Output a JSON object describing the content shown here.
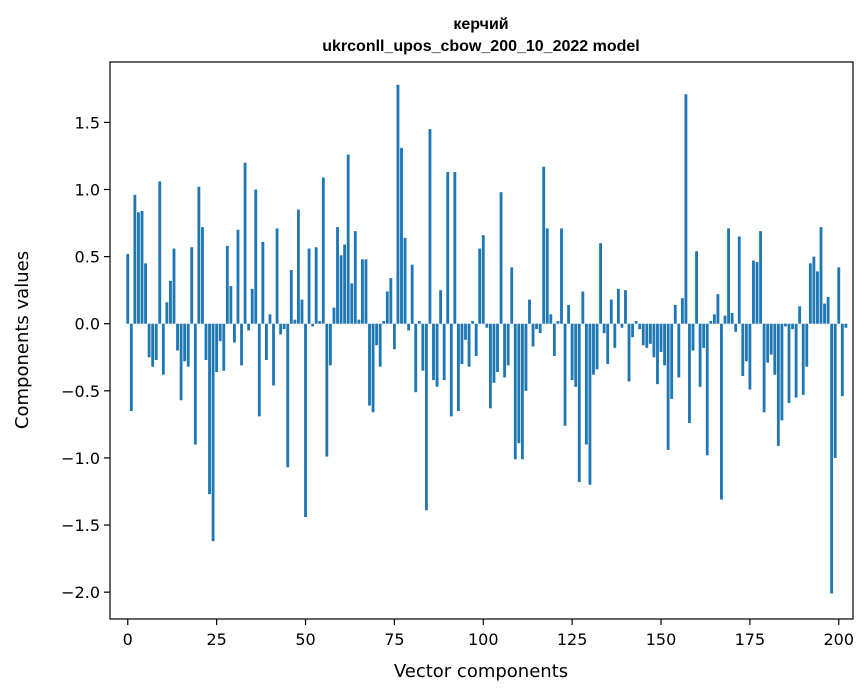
{
  "chart_data": {
    "type": "bar",
    "title": "керчий",
    "subtitle": "ukrconll_upos_cbow_200_10_2022 model",
    "xlabel": "Vector components",
    "ylabel": "Components values",
    "xlim": [
      -5,
      204
    ],
    "ylim": [
      -2.2,
      1.95
    ],
    "xticks": [
      0,
      25,
      50,
      75,
      100,
      125,
      150,
      175,
      200
    ],
    "yticks": [
      -2.0,
      -1.5,
      -1.0,
      -0.5,
      0.0,
      0.5,
      1.0,
      1.5
    ],
    "ytick_labels": [
      "−2.0",
      "−1.5",
      "−1.0",
      "−0.5",
      "0.0",
      "0.5",
      "1.0",
      "1.5"
    ],
    "grid": false,
    "bar_color": "#1f77b4",
    "values": [
      0.52,
      -0.65,
      0.96,
      0.83,
      0.84,
      0.45,
      -0.25,
      -0.32,
      -0.27,
      1.06,
      -0.38,
      0.16,
      0.32,
      0.56,
      -0.2,
      -0.57,
      -0.28,
      -0.32,
      0.57,
      -0.9,
      1.02,
      0.72,
      -0.27,
      -1.27,
      -1.62,
      -0.36,
      -0.13,
      -0.35,
      0.58,
      0.28,
      -0.14,
      0.7,
      -0.31,
      1.2,
      -0.05,
      0.26,
      1.0,
      -0.69,
      0.61,
      -0.27,
      0.07,
      -0.46,
      0.71,
      -0.08,
      -0.04,
      -1.07,
      0.4,
      0.03,
      0.85,
      0.18,
      -1.44,
      0.56,
      -0.02,
      0.57,
      0.02,
      1.09,
      -0.99,
      -0.31,
      0.12,
      0.72,
      0.51,
      0.59,
      1.26,
      0.3,
      0.69,
      0.03,
      0.48,
      0.48,
      -0.61,
      -0.66,
      -0.16,
      -0.32,
      0.02,
      0.24,
      0.34,
      -0.19,
      1.78,
      1.31,
      0.64,
      -0.05,
      0.44,
      -0.51,
      0.02,
      -0.35,
      -1.39,
      1.45,
      -0.42,
      -0.47,
      0.25,
      -0.42,
      1.13,
      -0.69,
      1.13,
      -0.65,
      -0.3,
      -0.12,
      -0.32,
      0.02,
      -0.24,
      0.56,
      0.66,
      -0.03,
      -0.63,
      -0.44,
      -0.36,
      0.98,
      -0.4,
      -0.31,
      0.42,
      -1.01,
      -0.89,
      -1.01,
      -0.5,
      0.18,
      -0.17,
      -0.04,
      -0.07,
      1.17,
      0.71,
      0.07,
      -0.24,
      0.02,
      0.71,
      -0.76,
      0.14,
      -0.42,
      -0.47,
      -1.18,
      0.24,
      -0.9,
      -1.2,
      -0.38,
      -0.34,
      0.6,
      -0.07,
      -0.3,
      0.18,
      -0.18,
      0.26,
      -0.03,
      0.25,
      -0.43,
      -0.1,
      0.02,
      -0.04,
      -0.16,
      -0.18,
      -0.15,
      -0.25,
      -0.45,
      -0.21,
      -0.31,
      -0.94,
      -0.56,
      0.14,
      -0.4,
      0.19,
      1.71,
      -0.74,
      -0.2,
      0.54,
      -0.47,
      -0.18,
      -0.98,
      0.02,
      0.07,
      0.22,
      -1.31,
      0.06,
      0.71,
      0.08,
      -0.06,
      0.65,
      -0.39,
      -0.28,
      -0.49,
      0.47,
      0.46,
      0.69,
      -0.66,
      -0.29,
      -0.23,
      -0.38,
      -0.91,
      -0.72,
      -0.02,
      -0.59,
      -0.04,
      -0.55,
      0.13,
      -0.53,
      -0.32,
      0.45,
      0.5,
      0.39,
      0.72,
      0.15,
      0.2,
      -2.01,
      -1.0,
      0.42,
      -0.54,
      -0.03
    ]
  }
}
